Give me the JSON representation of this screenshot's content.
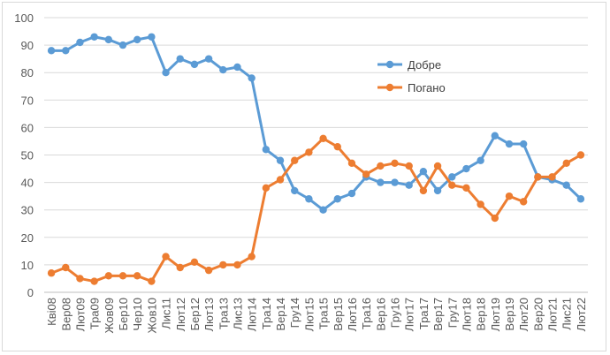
{
  "chart_data": {
    "type": "line",
    "ylim": [
      0,
      100
    ],
    "yticks": [
      0,
      10,
      20,
      30,
      40,
      50,
      60,
      70,
      80,
      90,
      100
    ],
    "grid": true,
    "legend_position": "top-right",
    "categories": [
      "Кві08",
      "Вер08",
      "Лют09",
      "Тра09",
      "Жов09",
      "Бер10",
      "Чер10",
      "Жов10",
      "Лис11",
      "Лют12",
      "Бер12",
      "Лют13",
      "Тра13",
      "Лис13",
      "Лют14",
      "Тра14",
      "Вер14",
      "Гру14",
      "Лют15",
      "Тра15",
      "Вер15",
      "Лют16",
      "Тра16",
      "Вер16",
      "Гру16",
      "Лют17",
      "Тра17",
      "Вер17",
      "Гру17",
      "Лют18",
      "Вер18",
      "Лют19",
      "Вер19",
      "Лют20",
      "Вер20",
      "Лют21",
      "Лис21",
      "Лют22"
    ],
    "series": [
      {
        "name": "Добре",
        "color": "#5b9bd5",
        "values": [
          88,
          88,
          91,
          93,
          92,
          90,
          92,
          93,
          80,
          85,
          83,
          85,
          81,
          82,
          78,
          52,
          48,
          37,
          34,
          30,
          34,
          36,
          42,
          40,
          40,
          39,
          44,
          37,
          42,
          45,
          48,
          57,
          54,
          54,
          42,
          41,
          39,
          34
        ]
      },
      {
        "name": "Погано",
        "color": "#ed7d31",
        "values": [
          7,
          9,
          5,
          4,
          6,
          6,
          6,
          4,
          13,
          9,
          11,
          8,
          10,
          10,
          13,
          38,
          41,
          48,
          51,
          56,
          53,
          47,
          43,
          46,
          47,
          46,
          37,
          46,
          39,
          38,
          32,
          27,
          35,
          33,
          42,
          42,
          47,
          50
        ]
      }
    ]
  }
}
